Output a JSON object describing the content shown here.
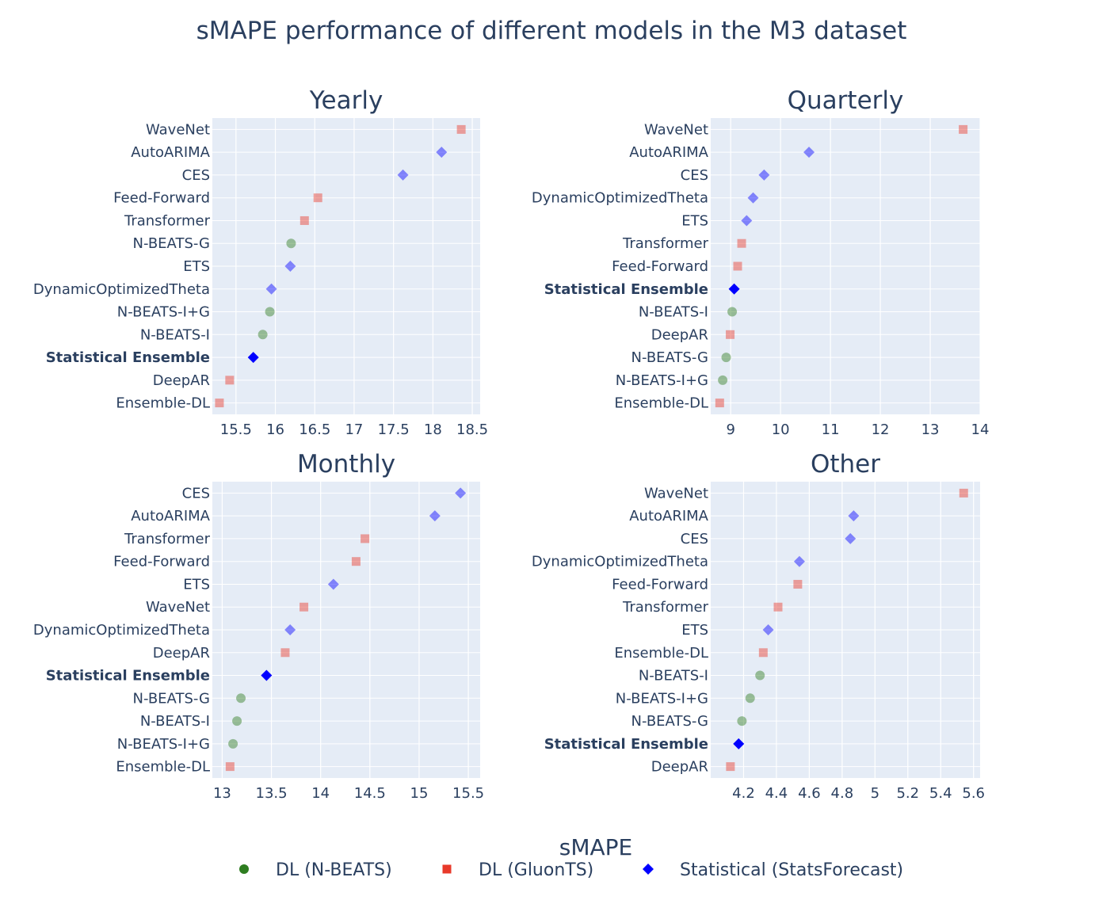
{
  "chart_data": {
    "type": "scatter",
    "title": "sMAPE performance of different models in the M3 dataset",
    "xlabel": "sMAPE",
    "legend": {
      "position": "bottom",
      "items": [
        {
          "name": "DL (N-BEATS)",
          "color": "#2e7d20",
          "symbol": "circle"
        },
        {
          "name": "DL (GluonTS)",
          "color": "#e8392a",
          "symbol": "square"
        },
        {
          "name": "Statistical (StatsForecast)",
          "color": "#0000ff",
          "symbol": "diamond"
        }
      ]
    },
    "grid": true,
    "highlight_label": "Statistical Ensemble",
    "subplots": [
      {
        "title": "Yearly",
        "xlim": [
          15.2,
          18.6
        ],
        "xticks": [
          15.5,
          16,
          16.5,
          17,
          17.5,
          18,
          18.5
        ],
        "points": [
          {
            "model": "WaveNet",
            "group": "DL (GluonTS)",
            "value": 18.36
          },
          {
            "model": "AutoARIMA",
            "group": "Statistical (StatsForecast)",
            "value": 18.11
          },
          {
            "model": "CES",
            "group": "Statistical (StatsForecast)",
            "value": 17.62
          },
          {
            "model": "Feed-Forward",
            "group": "DL (GluonTS)",
            "value": 16.54
          },
          {
            "model": "Transformer",
            "group": "DL (GluonTS)",
            "value": 16.37
          },
          {
            "model": "N-BEATS-G",
            "group": "DL (N-BEATS)",
            "value": 16.2
          },
          {
            "model": "ETS",
            "group": "Statistical (StatsForecast)",
            "value": 16.19
          },
          {
            "model": "DynamicOptimizedTheta",
            "group": "Statistical (StatsForecast)",
            "value": 15.95
          },
          {
            "model": "N-BEATS-I+G",
            "group": "DL (N-BEATS)",
            "value": 15.93
          },
          {
            "model": "N-BEATS-I",
            "group": "DL (N-BEATS)",
            "value": 15.84
          },
          {
            "model": "Statistical Ensemble",
            "group": "Statistical (StatsForecast)",
            "value": 15.72,
            "highlight": true
          },
          {
            "model": "DeepAR",
            "group": "DL (GluonTS)",
            "value": 15.42
          },
          {
            "model": "Ensemble-DL",
            "group": "DL (GluonTS)",
            "value": 15.29
          }
        ]
      },
      {
        "title": "Quarterly",
        "xlim": [
          8.6,
          14
        ],
        "xticks": [
          9,
          10,
          11,
          12,
          13,
          14
        ],
        "points": [
          {
            "model": "WaveNet",
            "group": "DL (GluonTS)",
            "value": 13.66
          },
          {
            "model": "AutoARIMA",
            "group": "Statistical (StatsForecast)",
            "value": 10.57
          },
          {
            "model": "CES",
            "group": "Statistical (StatsForecast)",
            "value": 9.67
          },
          {
            "model": "DynamicOptimizedTheta",
            "group": "Statistical (StatsForecast)",
            "value": 9.45
          },
          {
            "model": "ETS",
            "group": "Statistical (StatsForecast)",
            "value": 9.32
          },
          {
            "model": "Transformer",
            "group": "DL (GluonTS)",
            "value": 9.22
          },
          {
            "model": "Feed-Forward",
            "group": "DL (GluonTS)",
            "value": 9.14
          },
          {
            "model": "Statistical Ensemble",
            "group": "Statistical (StatsForecast)",
            "value": 9.07,
            "highlight": true
          },
          {
            "model": "N-BEATS-I",
            "group": "DL (N-BEATS)",
            "value": 9.03
          },
          {
            "model": "DeepAR",
            "group": "DL (GluonTS)",
            "value": 8.99
          },
          {
            "model": "N-BEATS-G",
            "group": "DL (N-BEATS)",
            "value": 8.91
          },
          {
            "model": "N-BEATS-I+G",
            "group": "DL (N-BEATS)",
            "value": 8.84
          },
          {
            "model": "Ensemble-DL",
            "group": "DL (GluonTS)",
            "value": 8.78
          }
        ]
      },
      {
        "title": "Monthly",
        "xlim": [
          12.9,
          15.62
        ],
        "xticks": [
          13,
          13.5,
          14,
          14.5,
          15,
          15.5
        ],
        "points": [
          {
            "model": "CES",
            "group": "Statistical (StatsForecast)",
            "value": 15.42
          },
          {
            "model": "AutoARIMA",
            "group": "Statistical (StatsForecast)",
            "value": 15.16
          },
          {
            "model": "Transformer",
            "group": "DL (GluonTS)",
            "value": 14.45
          },
          {
            "model": "Feed-Forward",
            "group": "DL (GluonTS)",
            "value": 14.36
          },
          {
            "model": "ETS",
            "group": "Statistical (StatsForecast)",
            "value": 14.13
          },
          {
            "model": "WaveNet",
            "group": "DL (GluonTS)",
            "value": 13.83
          },
          {
            "model": "DynamicOptimizedTheta",
            "group": "Statistical (StatsForecast)",
            "value": 13.69
          },
          {
            "model": "DeepAR",
            "group": "DL (GluonTS)",
            "value": 13.64
          },
          {
            "model": "Statistical Ensemble",
            "group": "Statistical (StatsForecast)",
            "value": 13.45,
            "highlight": true
          },
          {
            "model": "N-BEATS-G",
            "group": "DL (N-BEATS)",
            "value": 13.19
          },
          {
            "model": "N-BEATS-I",
            "group": "DL (N-BEATS)",
            "value": 13.15
          },
          {
            "model": "N-BEATS-I+G",
            "group": "DL (N-BEATS)",
            "value": 13.11
          },
          {
            "model": "Ensemble-DL",
            "group": "DL (GluonTS)",
            "value": 13.08
          }
        ]
      },
      {
        "title": "Other",
        "xlim": [
          4.0,
          5.64
        ],
        "xticks": [
          4.2,
          4.4,
          4.6,
          4.8,
          5,
          5.2,
          5.4,
          5.6
        ],
        "points": [
          {
            "model": "WaveNet",
            "group": "DL (GluonTS)",
            "value": 5.54
          },
          {
            "model": "AutoARIMA",
            "group": "Statistical (StatsForecast)",
            "value": 4.87
          },
          {
            "model": "CES",
            "group": "Statistical (StatsForecast)",
            "value": 4.85
          },
          {
            "model": "DynamicOptimizedTheta",
            "group": "Statistical (StatsForecast)",
            "value": 4.54
          },
          {
            "model": "Feed-Forward",
            "group": "DL (GluonTS)",
            "value": 4.53
          },
          {
            "model": "Transformer",
            "group": "DL (GluonTS)",
            "value": 4.41
          },
          {
            "model": "ETS",
            "group": "Statistical (StatsForecast)",
            "value": 4.35
          },
          {
            "model": "Ensemble-DL",
            "group": "DL (GluonTS)",
            "value": 4.32
          },
          {
            "model": "N-BEATS-I",
            "group": "DL (N-BEATS)",
            "value": 4.3
          },
          {
            "model": "N-BEATS-I+G",
            "group": "DL (N-BEATS)",
            "value": 4.24
          },
          {
            "model": "N-BEATS-G",
            "group": "DL (N-BEATS)",
            "value": 4.19
          },
          {
            "model": "Statistical Ensemble",
            "group": "Statistical (StatsForecast)",
            "value": 4.17,
            "highlight": true
          },
          {
            "model": "DeepAR",
            "group": "DL (GluonTS)",
            "value": 4.12
          }
        ]
      }
    ]
  }
}
